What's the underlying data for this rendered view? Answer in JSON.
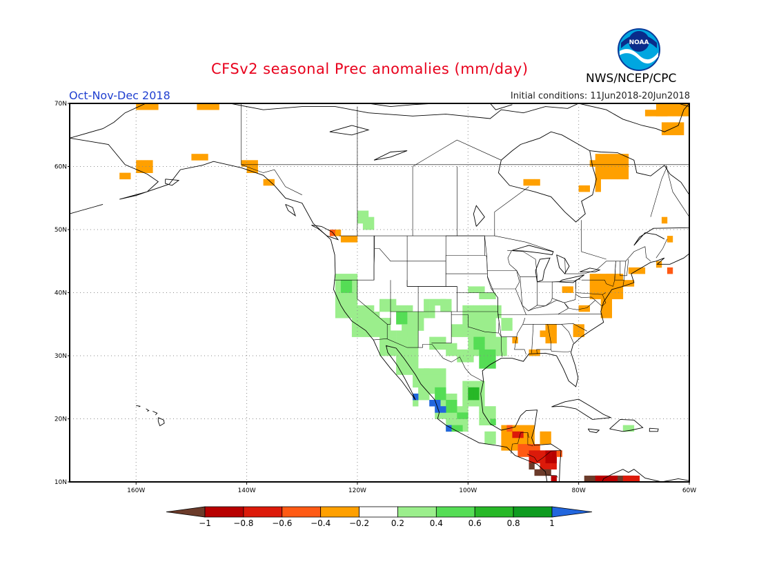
{
  "header": {
    "title": "CFSv2 seasonal Prec anomalies (mm/day)",
    "period": "Oct-Nov-Dec 2018",
    "initial_conditions": "Initial conditions: 11Jun2018-20Jun2018",
    "agency": "NWS/NCEP/CPC",
    "logo_text": "NOAA"
  },
  "map": {
    "lon_range": [
      -172,
      -60
    ],
    "lat_range": [
      10,
      70
    ],
    "lon_ticks": [
      "160W",
      "140W",
      "120W",
      "100W",
      "80W",
      "60W"
    ],
    "lat_ticks": [
      "70N",
      "60N",
      "50N",
      "40N",
      "30N",
      "20N",
      "10N"
    ],
    "grid": "dotted"
  },
  "colorbar": {
    "colors": [
      "#6b3b2a",
      "#b80000",
      "#dc1a0a",
      "#ff5a14",
      "#ffa000",
      "#ffffff",
      "#9bee8c",
      "#55dd55",
      "#27b827",
      "#0f9c20",
      "#2266dd"
    ],
    "ticks": [
      "−1",
      "−0.8",
      "−0.6",
      "−0.4",
      "−0.2",
      "0.2",
      "0.4",
      "0.6",
      "0.8",
      "1"
    ]
  },
  "colors": {
    "title": "#e8001c",
    "period": "#1f3fd0",
    "land_outline": "#000000"
  }
}
